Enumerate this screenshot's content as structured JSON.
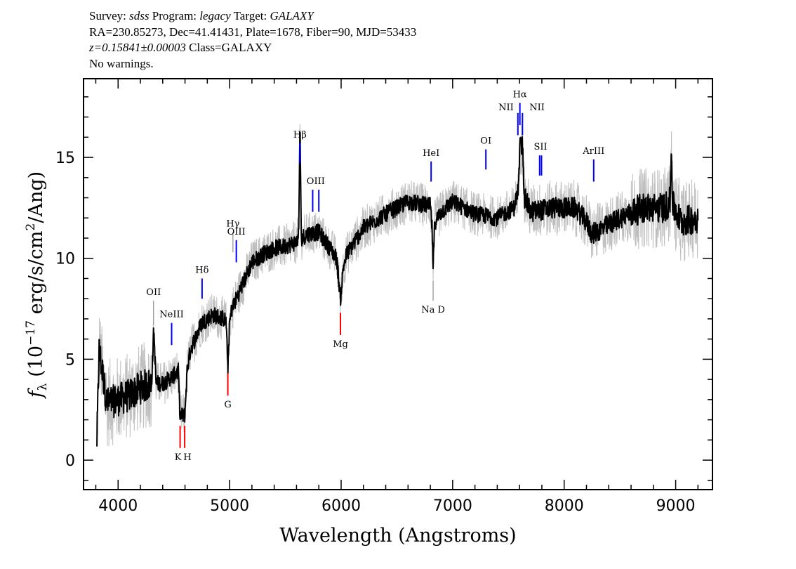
{
  "header": {
    "line1": {
      "survey_label": "Survey:",
      "survey": "sdss",
      "program_label": "Program:",
      "program": "legacy",
      "target_label": "Target:",
      "target": "GALAXY"
    },
    "line2": "RA=230.85273, Dec=41.41431, Plate=1678, Fiber=90, MJD=53433",
    "line3": {
      "redshift": "z=0.15841±0.00003",
      "class": "Class=GALAXY"
    },
    "line4": "No warnings."
  },
  "chart_data": {
    "type": "line",
    "xlabel": "Wavelength (Angstroms)",
    "ylabel": "f_λ (10^-17 erg/s/cm^2/Ang)",
    "ylabel_parts": {
      "f": "f",
      "sub": "λ",
      "a": " (10",
      "exp1": "−17",
      "b": " erg/s/cm",
      "exp2": "2",
      "c": "/Ang)"
    },
    "xlim": [
      3690,
      9330
    ],
    "ylim": [
      -1.46,
      18.9
    ],
    "xticks": [
      4000,
      5000,
      6000,
      7000,
      8000,
      9000
    ],
    "yticks": [
      0,
      5,
      10,
      15
    ],
    "grid": false,
    "colors": {
      "flux": "#000000",
      "noise_band": "#bfbfbf",
      "emission": "#0000ff",
      "absorption": "#ff0000",
      "sky": "#777777"
    },
    "series": [
      {
        "role": "smoothed-flux",
        "x": [
          3810,
          3830,
          3900,
          4000,
          4100,
          4200,
          4300,
          4320,
          4340,
          4400,
          4500,
          4540,
          4556,
          4597,
          4620,
          4650,
          4750,
          4850,
          4950,
          4970,
          4984,
          5000,
          5020,
          5100,
          5200,
          5300,
          5400,
          5500,
          5600,
          5620,
          5631,
          5642,
          5700,
          5800,
          5900,
          5960,
          5994,
          6020,
          6050,
          6200,
          6400,
          6600,
          6800,
          6815,
          6825,
          6840,
          6900,
          7000,
          7200,
          7400,
          7550,
          7590,
          7603,
          7626,
          7645,
          7700,
          7900,
          8100,
          8200,
          8250,
          8350,
          8500,
          8700,
          8900,
          8950,
          8960,
          8975,
          9050,
          9200
        ],
        "y": [
          1.0,
          5.5,
          2.8,
          3.0,
          3.2,
          3.6,
          3.8,
          6.5,
          3.8,
          3.8,
          4.2,
          4.4,
          2.2,
          2.2,
          4.5,
          5.5,
          6.8,
          7.2,
          7.0,
          6.8,
          4.5,
          6.8,
          7.5,
          8.5,
          9.8,
          10.2,
          10.5,
          10.6,
          10.8,
          11.2,
          16.9,
          11.0,
          11.2,
          11.3,
          10.5,
          10.0,
          8.0,
          9.6,
          10.2,
          11.5,
          12.2,
          12.8,
          12.6,
          11.5,
          9.5,
          11.8,
          12.3,
          12.8,
          12.2,
          12.0,
          12.5,
          13.5,
          15.5,
          15.6,
          13.0,
          12.3,
          12.5,
          12.5,
          11.8,
          11.2,
          11.5,
          12.0,
          12.5,
          12.5,
          12.8,
          15.3,
          12.6,
          11.8,
          12.0
        ]
      }
    ],
    "line_markers": [
      {
        "label": "OII",
        "wavelength": 4318,
        "kind": "sky",
        "y0": 6.7,
        "y1": 7.9,
        "label_pos": "above"
      },
      {
        "label": "NeIII",
        "wavelength": 4480,
        "kind": "emission",
        "y0": 5.7,
        "y1": 6.8,
        "label_pos": "above"
      },
      {
        "label": "Hδ",
        "wavelength": 4753,
        "kind": "emission",
        "y0": 8.0,
        "y1": 9.0,
        "label_pos": "above"
      },
      {
        "label": "Hγ",
        "wavelength": 5030,
        "kind": "sky",
        "y0": 10.3,
        "y1": 11.3,
        "label_pos": "above"
      },
      {
        "label": "OIII",
        "wavelength": 5060,
        "kind": "emission",
        "y0": 9.8,
        "y1": 10.9,
        "label_pos": "above"
      },
      {
        "label": "Hβ",
        "wavelength": 5631,
        "kind": "emission",
        "y0": 14.7,
        "y1": 15.7,
        "label_pos": "above"
      },
      {
        "label": "OIII",
        "wavelength": 5745,
        "kind": "emission",
        "y0": 12.3,
        "y1": 13.4,
        "label_pos": "above",
        "pair": 5800
      },
      {
        "label": "HeI",
        "wavelength": 6807,
        "kind": "emission",
        "y0": 13.8,
        "y1": 14.8,
        "label_pos": "above"
      },
      {
        "label": "OI",
        "wavelength": 7298,
        "kind": "emission",
        "y0": 14.4,
        "y1": 15.4,
        "label_pos": "above"
      },
      {
        "label": "NII",
        "wavelength": 7585,
        "kind": "emission",
        "y0": 16.1,
        "y1": 17.2,
        "label_pos": "left"
      },
      {
        "label": "Hα",
        "wavelength": 7603,
        "kind": "emission",
        "y0": 16.6,
        "y1": 17.7,
        "label_pos": "above"
      },
      {
        "label": "NII",
        "wavelength": 7626,
        "kind": "emission",
        "y0": 16.1,
        "y1": 17.2,
        "label_pos": "right"
      },
      {
        "label": "SII",
        "wavelength": 7780,
        "kind": "emission",
        "y0": 14.1,
        "y1": 15.1,
        "label_pos": "above",
        "pair": 7797
      },
      {
        "label": "ArIII",
        "wavelength": 8265,
        "kind": "emission",
        "y0": 13.8,
        "y1": 14.9,
        "label_pos": "above"
      },
      {
        "label": "K",
        "wavelength": 4556,
        "kind": "absorption",
        "y0": 0.6,
        "y1": 1.7,
        "label_pos": "below"
      },
      {
        "label": "H",
        "wavelength": 4597,
        "kind": "absorption",
        "y0": 0.6,
        "y1": 1.7,
        "label_pos": "below"
      },
      {
        "label": "G",
        "wavelength": 4984,
        "kind": "absorption",
        "y0": 3.2,
        "y1": 4.3,
        "label_pos": "below"
      },
      {
        "label": "Mg",
        "wavelength": 5994,
        "kind": "absorption",
        "y0": 6.2,
        "y1": 7.3,
        "label_pos": "below"
      },
      {
        "label": "Na D",
        "wavelength": 6825,
        "kind": "sky",
        "y0": 7.9,
        "y1": 8.9,
        "label_pos": "below"
      }
    ]
  }
}
